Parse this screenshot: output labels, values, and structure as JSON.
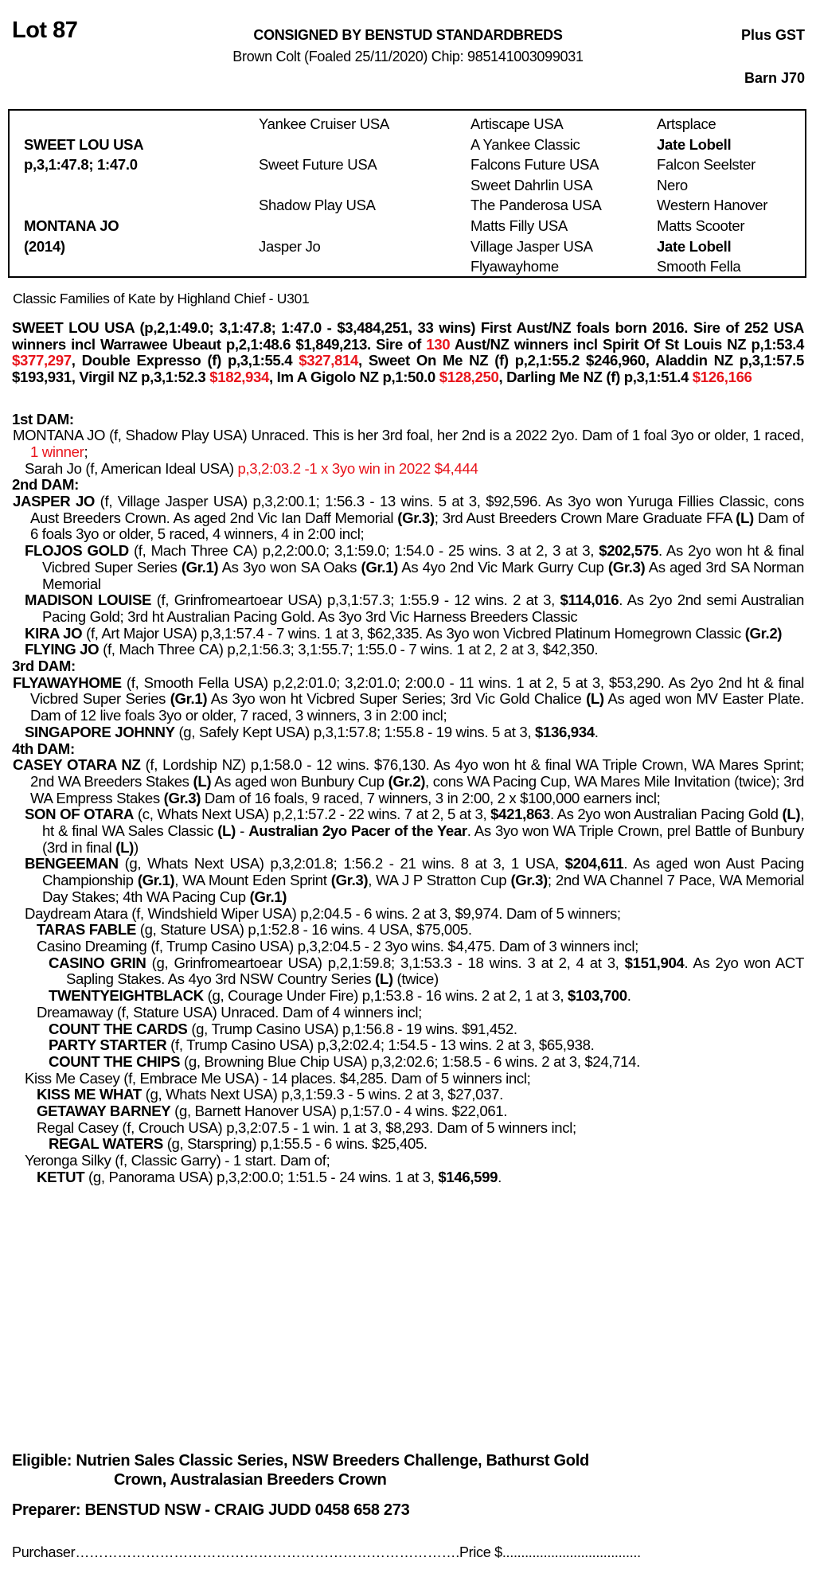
{
  "header": {
    "lot": "Lot 87",
    "consignor": "CONSIGNED BY BENSTUD STANDARDBREDS",
    "description": "Brown Colt (Foaled 25/11/2020) Chip: 985141003099031",
    "tax": "Plus GST",
    "barn": "Barn J70"
  },
  "pedigree": {
    "col1": [
      {
        "t": "",
        "b": false
      },
      {
        "t": "SWEET LOU USA",
        "b": true
      },
      {
        "t": "p,3,1:47.8; 1:47.0",
        "b": true
      },
      {
        "t": "",
        "b": false
      },
      {
        "t": "",
        "b": false
      },
      {
        "t": "MONTANA JO",
        "b": true
      },
      {
        "t": "(2014)",
        "b": true
      },
      {
        "t": "",
        "b": false
      }
    ],
    "col2": [
      {
        "t": "Yankee Cruiser USA",
        "b": false
      },
      {
        "t": "",
        "b": false
      },
      {
        "t": "Sweet Future USA",
        "b": false
      },
      {
        "t": "",
        "b": false
      },
      {
        "t": "Shadow Play USA",
        "b": false
      },
      {
        "t": "",
        "b": false
      },
      {
        "t": "Jasper Jo",
        "b": false
      },
      {
        "t": "",
        "b": false
      }
    ],
    "col3": [
      {
        "t": "Artiscape USA",
        "b": false
      },
      {
        "t": "A Yankee Classic",
        "b": false
      },
      {
        "t": "Falcons Future USA",
        "b": false
      },
      {
        "t": "Sweet Dahrlin USA",
        "b": false
      },
      {
        "t": "The Panderosa USA",
        "b": false
      },
      {
        "t": "Matts Filly USA",
        "b": false
      },
      {
        "t": "Village Jasper USA",
        "b": false
      },
      {
        "t": "Flyawayhome",
        "b": false
      }
    ],
    "col4": [
      {
        "t": "Artsplace",
        "b": false
      },
      {
        "t": "Jate Lobell",
        "b": true
      },
      {
        "t": "Falcon Seelster",
        "b": false
      },
      {
        "t": "Nero",
        "b": false
      },
      {
        "t": "Western Hanover",
        "b": false
      },
      {
        "t": "Matts Scooter",
        "b": false
      },
      {
        "t": "Jate Lobell",
        "b": true
      },
      {
        "t": "Smooth Fella",
        "b": false
      }
    ]
  },
  "family": "Classic Families of Kate by Highland Chief - U301",
  "sire": [
    {
      "t": "SWEET LOU USA (p,2,1:49.0; 3,1:47.8; 1:47.0 - $3,484,251, 33 wins) First Aust/NZ foals born 2016. Sire of 252 USA winners incl Warrawee Ubeaut p,2,1:48.6 $1,849,213. Sire of ",
      "s": ""
    },
    {
      "t": "130",
      "s": "r"
    },
    {
      "t": " Aust/NZ winners incl Spirit Of St Louis NZ p,1:53.4 ",
      "s": ""
    },
    {
      "t": "$377,297",
      "s": "r"
    },
    {
      "t": ", Double Expresso (f) p,3,1:55.4 ",
      "s": ""
    },
    {
      "t": "$327,814",
      "s": "r"
    },
    {
      "t": ", Sweet On Me NZ (f) p,2,1:55.2 $246,960, Aladdin NZ p,3,1:57.5 $193,931, Virgil NZ p,3,1:52.3 ",
      "s": ""
    },
    {
      "t": "$182,934",
      "s": "r"
    },
    {
      "t": ", Im A Gigolo NZ p,1:50.0 ",
      "s": ""
    },
    {
      "t": "$128,250",
      "s": "r"
    },
    {
      "t": ", Darling Me NZ (f) p,3,1:51.4 ",
      "s": ""
    },
    {
      "t": "$126,166",
      "s": "r"
    }
  ],
  "dams": [
    {
      "heading": "1st DAM:",
      "entries": [
        {
          "level": 1,
          "segs": [
            {
              "t": "MONTANA JO (f, Shadow Play USA) Unraced. This is her 3rd foal, her 2nd is a 2022 2yo. Dam of 1 foal 3yo or older, 1 raced, ",
              "s": ""
            },
            {
              "t": "1 winner",
              "s": "r"
            },
            {
              "t": ";",
              "s": ""
            }
          ]
        },
        {
          "level": 2,
          "segs": [
            {
              "t": "Sarah Jo (f, American Ideal USA) ",
              "s": ""
            },
            {
              "t": "p,3,2:03.2 -1 x 3yo win in 2022 $4,444",
              "s": "r"
            }
          ]
        }
      ]
    },
    {
      "heading": "2nd DAM:",
      "entries": [
        {
          "level": 1,
          "segs": [
            {
              "t": "JASPER JO",
              "s": "b"
            },
            {
              "t": " (f, Village Jasper USA) p,3,2:00.1; 1:56.3 - 13 wins. 5 at 3, $92,596. As 3yo won Yuruga Fillies Classic, cons Aust Breeders Crown. As aged 2nd Vic Ian Daff Memorial ",
              "s": ""
            },
            {
              "t": "(Gr.3)",
              "s": "b"
            },
            {
              "t": "; 3rd Aust Breeders Crown Mare Graduate FFA ",
              "s": ""
            },
            {
              "t": "(L)",
              "s": "b"
            },
            {
              "t": " Dam of 6 foals 3yo or older, 5 raced, 4 winners, 4 in 2:00 incl;",
              "s": ""
            }
          ]
        },
        {
          "level": 2,
          "segs": [
            {
              "t": "FLOJOS GOLD",
              "s": "b"
            },
            {
              "t": " (f, Mach Three CA) p,2,2:00.0; 3,1:59.0; 1:54.0 - 25 wins. 3 at 2, 3 at 3, ",
              "s": ""
            },
            {
              "t": "$202,575",
              "s": "b"
            },
            {
              "t": ". As 2yo won ht & final Vicbred Super Series ",
              "s": ""
            },
            {
              "t": "(Gr.1)",
              "s": "b"
            },
            {
              "t": " As 3yo won SA Oaks ",
              "s": ""
            },
            {
              "t": "(Gr.1)",
              "s": "b"
            },
            {
              "t": " As 4yo 2nd Vic Mark Gurry Cup ",
              "s": ""
            },
            {
              "t": "(Gr.3)",
              "s": "b"
            },
            {
              "t": " As aged 3rd SA Norman Memorial",
              "s": ""
            }
          ]
        },
        {
          "level": 2,
          "segs": [
            {
              "t": "MADISON LOUISE",
              "s": "b"
            },
            {
              "t": " (f, Grinfromeartoear USA) p,3,1:57.3; 1:55.9 - 12 wins. 2 at 3, ",
              "s": ""
            },
            {
              "t": "$114,016",
              "s": "b"
            },
            {
              "t": ". As 2yo 2nd semi Australian Pacing Gold; 3rd ht Australian Pacing Gold. As 3yo 3rd Vic Harness Breeders Classic",
              "s": ""
            }
          ]
        },
        {
          "level": 2,
          "segs": [
            {
              "t": "KIRA JO",
              "s": "b"
            },
            {
              "t": " (f, Art Major USA) p,3,1:57.4 - 7 wins. 1 at 3, $62,335. As 3yo won Vicbred Platinum Homegrown Classic ",
              "s": ""
            },
            {
              "t": "(Gr.2)",
              "s": "b"
            }
          ]
        },
        {
          "level": 2,
          "segs": [
            {
              "t": "FLYING JO",
              "s": "b"
            },
            {
              "t": " (f, Mach Three CA) p,2,1:56.3; 3,1:55.7; 1:55.0 - 7 wins. 1 at 2, 2 at 3, $42,350.",
              "s": ""
            }
          ]
        }
      ]
    },
    {
      "heading": "3rd DAM:",
      "entries": [
        {
          "level": 1,
          "segs": [
            {
              "t": "FLYAWAYHOME",
              "s": "b"
            },
            {
              "t": " (f, Smooth Fella USA) p,2,2:01.0; 3,2:01.0; 2:00.0 - 11 wins. 1 at 2, 5 at 3, $53,290. As 2yo 2nd ht & final Vicbred Super Series ",
              "s": ""
            },
            {
              "t": "(Gr.1)",
              "s": "b"
            },
            {
              "t": " As 3yo won ht Vicbred Super Series; 3rd Vic Gold Chalice ",
              "s": ""
            },
            {
              "t": "(L)",
              "s": "b"
            },
            {
              "t": " As aged won MV Easter Plate. Dam of 12 live foals 3yo or older, 7 raced, 3 winners, 3 in 2:00 incl;",
              "s": ""
            }
          ]
        },
        {
          "level": 2,
          "segs": [
            {
              "t": "SINGAPORE JOHNNY",
              "s": "b"
            },
            {
              "t": " (g, Safely Kept USA) p,3,1:57.8; 1:55.8 - 19 wins. 5 at 3, ",
              "s": ""
            },
            {
              "t": "$136,934",
              "s": "b"
            },
            {
              "t": ".",
              "s": ""
            }
          ]
        }
      ]
    },
    {
      "heading": "4th DAM:",
      "entries": [
        {
          "level": 1,
          "segs": [
            {
              "t": "CASEY OTARA NZ",
              "s": "b"
            },
            {
              "t": " (f, Lordship NZ) p,1:58.0 - 12 wins. $76,130. As 4yo won ht & final WA Triple Crown, WA Mares Sprint; 2nd WA Breeders Stakes ",
              "s": ""
            },
            {
              "t": "(L)",
              "s": "b"
            },
            {
              "t": " As aged won Bunbury Cup ",
              "s": ""
            },
            {
              "t": "(Gr.2)",
              "s": "b"
            },
            {
              "t": ", cons WA Pacing Cup, WA Mares Mile Invitation (twice); 3rd WA Empress Stakes ",
              "s": ""
            },
            {
              "t": "(Gr.3)",
              "s": "b"
            },
            {
              "t": " Dam of 16 foals, 9 raced, 7 winners, 3 in 2:00, 2 x $100,000 earners incl;",
              "s": ""
            }
          ]
        },
        {
          "level": 2,
          "segs": [
            {
              "t": "SON OF OTARA",
              "s": "b"
            },
            {
              "t": " (c, Whats Next USA) p,2,1:57.2 - 22 wins. 7 at 2, 5 at 3, ",
              "s": ""
            },
            {
              "t": "$421,863",
              "s": "b"
            },
            {
              "t": ". As 2yo won Australian Pacing Gold ",
              "s": ""
            },
            {
              "t": "(L)",
              "s": "b"
            },
            {
              "t": ", ht & final WA Sales Classic ",
              "s": ""
            },
            {
              "t": "(L)",
              "s": "b"
            },
            {
              "t": " - ",
              "s": ""
            },
            {
              "t": "Australian 2yo Pacer of the Year",
              "s": "b"
            },
            {
              "t": ". As 3yo won WA Triple Crown, prel Battle of Bunbury (3rd in final ",
              "s": ""
            },
            {
              "t": "(L)",
              "s": "b"
            },
            {
              "t": ")",
              "s": ""
            }
          ]
        },
        {
          "level": 2,
          "segs": [
            {
              "t": "BENGEEMAN",
              "s": "b"
            },
            {
              "t": " (g, Whats Next USA) p,3,2:01.8; 1:56.2 - 21 wins. 8 at 3, 1 USA, ",
              "s": ""
            },
            {
              "t": "$204,611",
              "s": "b"
            },
            {
              "t": ". As aged won Aust Pacing Championship ",
              "s": ""
            },
            {
              "t": "(Gr.1)",
              "s": "b"
            },
            {
              "t": ", WA Mount Eden Sprint ",
              "s": ""
            },
            {
              "t": "(Gr.3)",
              "s": "b"
            },
            {
              "t": ", WA J P Stratton Cup ",
              "s": ""
            },
            {
              "t": "(Gr.3)",
              "s": "b"
            },
            {
              "t": "; 2nd WA Channel 7 Pace, WA Memorial Day Stakes; 4th WA Pacing Cup ",
              "s": ""
            },
            {
              "t": "(Gr.1)",
              "s": "b"
            }
          ]
        },
        {
          "level": 2,
          "segs": [
            {
              "t": "Daydream Atara (f, Windshield Wiper USA) p,2:04.5 - 6 wins. 2 at 3, $9,974. Dam of 5 winners;",
              "s": ""
            }
          ]
        },
        {
          "level": 3,
          "segs": [
            {
              "t": "TARAS FABLE",
              "s": "b"
            },
            {
              "t": " (g, Stature USA) p,1:52.8 - 16 wins. 4 USA, $75,005.",
              "s": ""
            }
          ]
        },
        {
          "level": 3,
          "segs": [
            {
              "t": "Casino Dreaming (f, Trump Casino USA) p,3,2:04.5 - 2 3yo wins. $4,475. Dam of 3 winners incl;",
              "s": ""
            }
          ]
        },
        {
          "level": 4,
          "segs": [
            {
              "t": "CASINO GRIN",
              "s": "b"
            },
            {
              "t": " (g, Grinfromeartoear USA) p,2,1:59.8; 3,1:53.3 - 18 wins. 3 at 2, 4 at 3, ",
              "s": ""
            },
            {
              "t": "$151,904",
              "s": "b"
            },
            {
              "t": ". As 2yo won ACT Sapling Stakes. As 4yo 3rd NSW Country Series ",
              "s": ""
            },
            {
              "t": "(L)",
              "s": "b"
            },
            {
              "t": " (twice)",
              "s": ""
            }
          ]
        },
        {
          "level": 4,
          "segs": [
            {
              "t": "TWENTYEIGHTBLACK",
              "s": "b"
            },
            {
              "t": " (g, Courage Under Fire) p,1:53.8 - 16 wins. 2 at 2, 1 at 3, ",
              "s": ""
            },
            {
              "t": "$103,700",
              "s": "b"
            },
            {
              "t": ".",
              "s": ""
            }
          ]
        },
        {
          "level": 3,
          "segs": [
            {
              "t": "Dreamaway (f, Stature USA) Unraced. Dam of 4 winners incl;",
              "s": ""
            }
          ]
        },
        {
          "level": 4,
          "segs": [
            {
              "t": "COUNT THE CARDS",
              "s": "b"
            },
            {
              "t": " (g, Trump Casino USA) p,1:56.8 - 19 wins. $91,452.",
              "s": ""
            }
          ]
        },
        {
          "level": 4,
          "segs": [
            {
              "t": "PARTY STARTER",
              "s": "b"
            },
            {
              "t": " (f, Trump Casino USA) p,3,2:02.4; 1:54.5 - 13 wins. 2 at 3, $65,938.",
              "s": ""
            }
          ]
        },
        {
          "level": 4,
          "segs": [
            {
              "t": "COUNT THE CHIPS",
              "s": "b"
            },
            {
              "t": " (g, Browning Blue Chip USA) p,3,2:02.6; 1:58.5 - 6 wins. 2 at 3, $24,714.",
              "s": ""
            }
          ]
        },
        {
          "level": 2,
          "segs": [
            {
              "t": "Kiss Me Casey (f, Embrace Me USA) - 14 places. $4,285. Dam of 5 winners incl;",
              "s": ""
            }
          ]
        },
        {
          "level": 3,
          "segs": [
            {
              "t": "KISS ME WHAT",
              "s": "b"
            },
            {
              "t": " (g, Whats Next USA) p,3,1:59.3 - 5 wins. 2 at 3, $27,037.",
              "s": ""
            }
          ]
        },
        {
          "level": 3,
          "segs": [
            {
              "t": "GETAWAY BARNEY",
              "s": "b"
            },
            {
              "t": " (g, Barnett Hanover USA) p,1:57.0 - 4 wins. $22,061.",
              "s": ""
            }
          ]
        },
        {
          "level": 3,
          "segs": [
            {
              "t": "Regal Casey (f, Crouch USA) p,3,2:07.5 - 1 win. 1 at 3, $8,293. Dam of 5 winners incl;",
              "s": ""
            }
          ]
        },
        {
          "level": 4,
          "segs": [
            {
              "t": "REGAL WATERS",
              "s": "b"
            },
            {
              "t": " (g, Starspring) p,1:55.5 - 6 wins. $25,405.",
              "s": ""
            }
          ]
        },
        {
          "level": 2,
          "segs": [
            {
              "t": "Yeronga Silky (f, Classic Garry) - 1 start. Dam of;",
              "s": ""
            }
          ]
        },
        {
          "level": 3,
          "segs": [
            {
              "t": "KETUT",
              "s": "b"
            },
            {
              "t": " (g, Panorama USA) p,3,2:00.0; 1:51.5 - 24 wins. 1 at 3, ",
              "s": ""
            },
            {
              "t": "$146,599",
              "s": "b"
            },
            {
              "t": ".",
              "s": ""
            }
          ]
        }
      ]
    }
  ],
  "footer": {
    "eligible_line1": "Eligible: Nutrien Sales Classic Series, NSW Breeders Challenge, Bathurst Gold",
    "eligible_line2": "Crown, Australasian Breeders Crown",
    "preparer": "Preparer: BENSTUD NSW - CRAIG JUDD 0458 658 273",
    "purchaser": "Purchaser……………………………………………………………………….Price $....................................."
  },
  "colors": {
    "highlight": "#e8141b",
    "text": "#000000"
  }
}
